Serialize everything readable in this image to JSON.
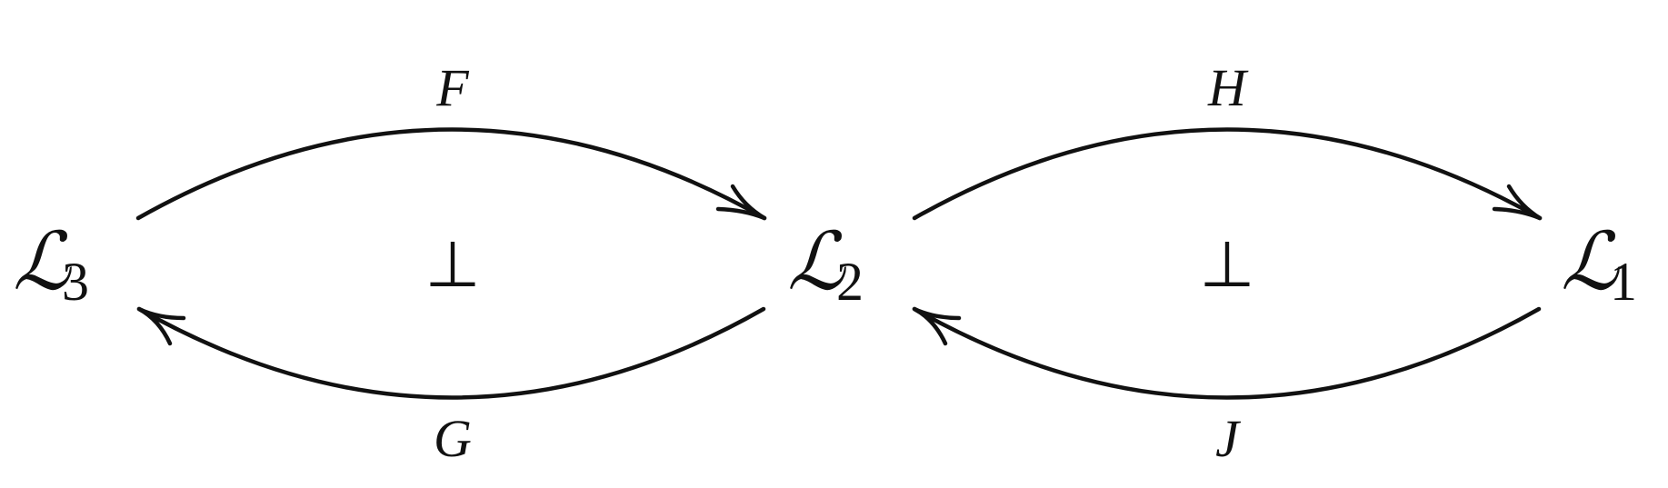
{
  "nodes": [
    {
      "id": "n3",
      "letter": "ℒ",
      "subscript": "3"
    },
    {
      "id": "n2",
      "letter": "ℒ",
      "subscript": "2"
    },
    {
      "id": "n1",
      "letter": "ℒ",
      "subscript": "1"
    }
  ],
  "arrows": [
    {
      "id": "F",
      "label": "F",
      "from": "n3",
      "to": "n2"
    },
    {
      "id": "G",
      "label": "G",
      "from": "n2",
      "to": "n3"
    },
    {
      "id": "H",
      "label": "H",
      "from": "n2",
      "to": "n1"
    },
    {
      "id": "J",
      "label": "J",
      "from": "n1",
      "to": "n2"
    }
  ],
  "adjunctions": [
    {
      "id": "left",
      "symbol": "⊥"
    },
    {
      "id": "right",
      "symbol": "⊥"
    }
  ]
}
